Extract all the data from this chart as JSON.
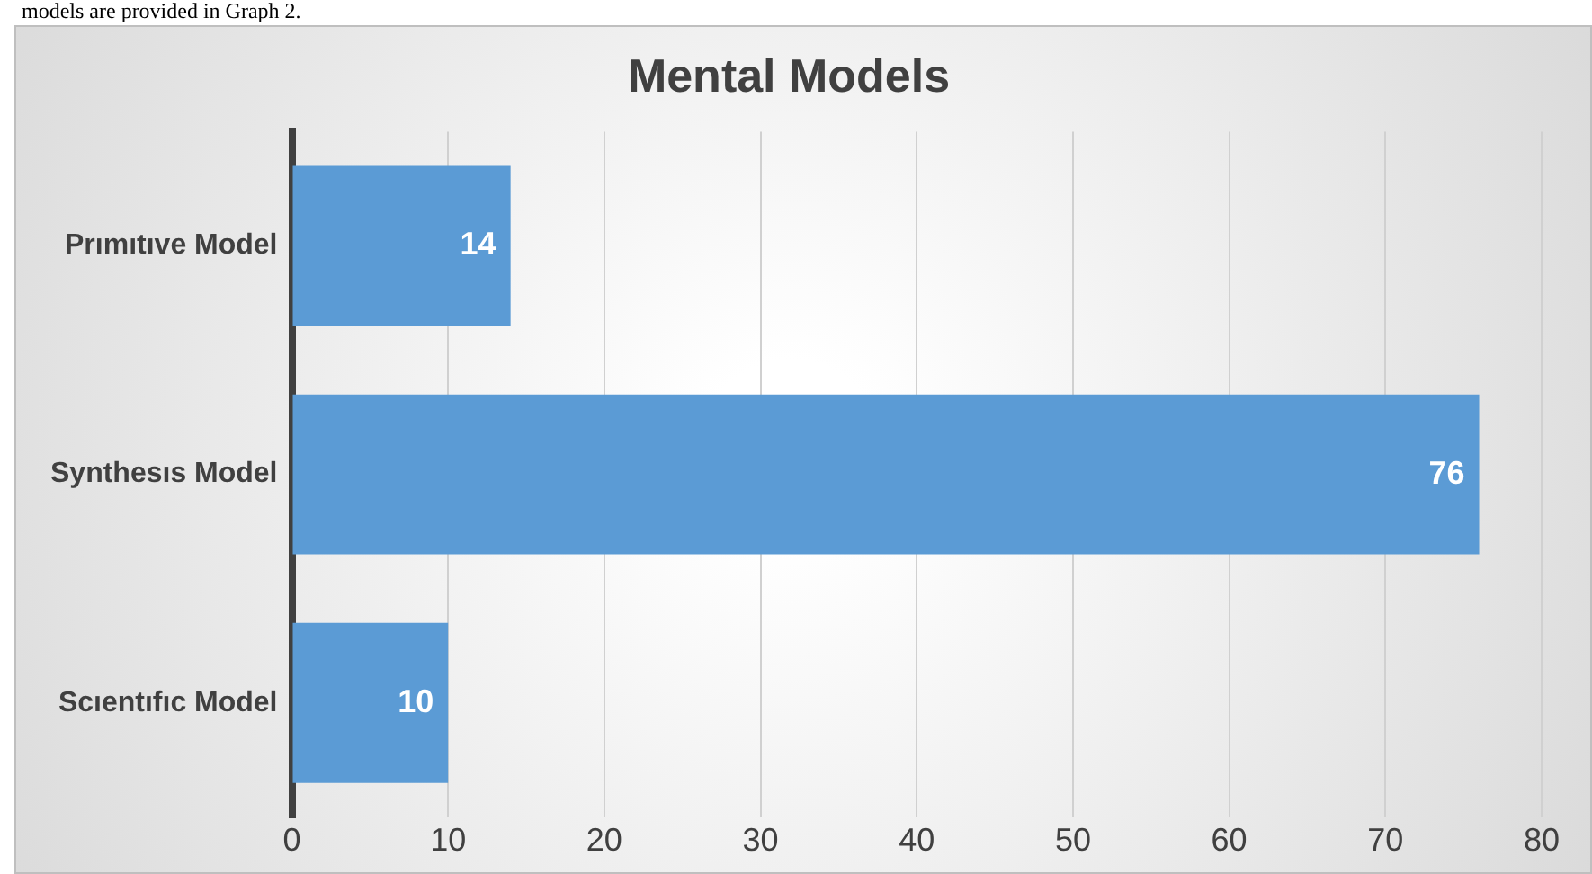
{
  "chart_data": {
    "type": "bar",
    "orientation": "horizontal",
    "title": "Mental Models",
    "annotations": [
      "models are provided in Graph 2."
    ],
    "categories": [
      "Prımıtıve Model",
      "Synthesıs Model",
      "Scıentıfıc Model"
    ],
    "values": [
      14,
      76,
      10
    ],
    "color": "#5b9bd5",
    "data_labels": true,
    "xlim": [
      0,
      80
    ],
    "xticks": [
      0,
      10,
      20,
      30,
      40,
      50,
      60,
      70,
      80
    ],
    "grid": "x",
    "legend": false
  }
}
